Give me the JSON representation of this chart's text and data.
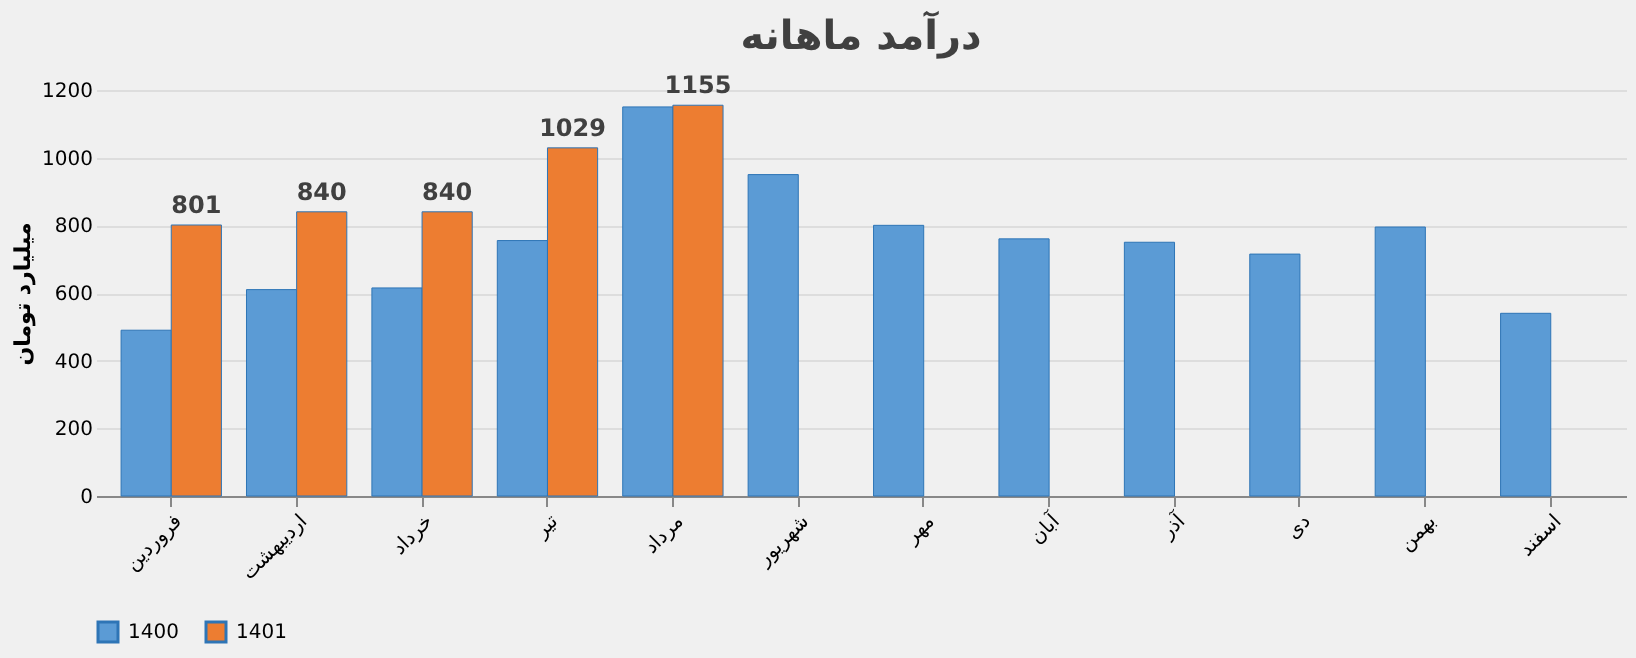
{
  "chart_data": {
    "type": "bar",
    "title": "درآمد ماهانه",
    "ylabel": "میلیارد تومان",
    "categories": [
      "فروردین",
      "اردیبهشت",
      "خرداد",
      "تیر",
      "مرداد",
      "شهریور",
      "مهر",
      "آبان",
      "آذر",
      "دی",
      "بهمن",
      "اسفند"
    ],
    "series": [
      {
        "name": "1400",
        "color": "#5b9bd5",
        "values": [
          490,
          610,
          615,
          755,
          1150,
          950,
          800,
          760,
          750,
          715,
          795,
          540
        ]
      },
      {
        "name": "1401",
        "color": "#ed7d31",
        "values": [
          801,
          840,
          840,
          1029,
          1155,
          null,
          null,
          null,
          null,
          null,
          null,
          null
        ],
        "value_labels": [
          "801",
          "840",
          "840",
          "1029",
          "1155",
          null,
          null,
          null,
          null,
          null,
          null,
          null
        ]
      }
    ],
    "ylim": [
      0,
      1200
    ],
    "yticks": [
      0,
      200,
      400,
      600,
      800,
      1000,
      1200
    ],
    "grid": "y",
    "legend": "bottom"
  }
}
